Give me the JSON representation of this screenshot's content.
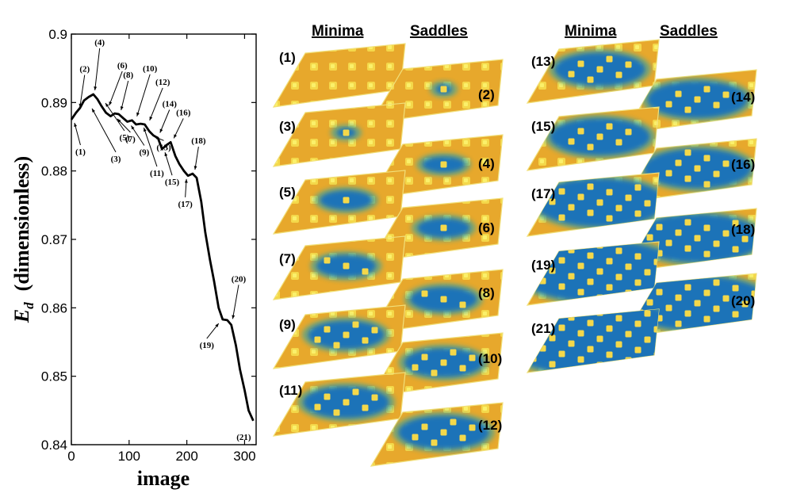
{
  "chart_data": [
    {
      "type": "line",
      "xlabel": "image",
      "ylabel": "E_d (dimensionless)",
      "ylabel_main": "E",
      "ylabel_sub": "d",
      "ylabel_rest": "(dimensionless)",
      "xlim": [
        0,
        320
      ],
      "ylim": [
        0.84,
        0.9
      ],
      "xticks": [
        "0",
        "100",
        "200",
        "300"
      ],
      "yticks": [
        "0.84",
        "0.85",
        "0.86",
        "0.87",
        "0.88",
        "0.89",
        "0.9"
      ],
      "series": [
        {
          "x": [
            0,
            8,
            15,
            22,
            30,
            38,
            45,
            52,
            60,
            68,
            75,
            82,
            90,
            97,
            105,
            112,
            120,
            127,
            135,
            142,
            150,
            157,
            165,
            172,
            180,
            187,
            195,
            202,
            210,
            217,
            225,
            232,
            240,
            247,
            255,
            262,
            270,
            277,
            285,
            292,
            300,
            307,
            315
          ],
          "y": [
            0.8875,
            0.8885,
            0.8892,
            0.8903,
            0.8908,
            0.8912,
            0.8905,
            0.8895,
            0.8885,
            0.888,
            0.8884,
            0.8883,
            0.8877,
            0.8872,
            0.8874,
            0.8868,
            0.8869,
            0.8868,
            0.8858,
            0.8852,
            0.8848,
            0.8832,
            0.8838,
            0.8842,
            0.8822,
            0.881,
            0.88,
            0.8793,
            0.8796,
            0.879,
            0.8755,
            0.871,
            0.867,
            0.864,
            0.86,
            0.8583,
            0.8582,
            0.8575,
            0.8545,
            0.851,
            0.848,
            0.845,
            0.8435
          ]
        }
      ],
      "annotations": [
        {
          "text": "(1)",
          "x": 2,
          "y": 0.8876
        },
        {
          "text": "(2)",
          "x": 12,
          "y": 0.8887
        },
        {
          "text": "(3)",
          "x": 22,
          "y": 0.8897
        },
        {
          "text": "(4)",
          "x": 38,
          "y": 0.8912
        },
        {
          "text": "(5)",
          "x": 48,
          "y": 0.8905
        },
        {
          "text": "(6)",
          "x": 58,
          "y": 0.889
        },
        {
          "text": "(7)",
          "x": 72,
          "y": 0.8882
        },
        {
          "text": "(8)",
          "x": 82,
          "y": 0.8883
        },
        {
          "text": "(9)",
          "x": 96,
          "y": 0.8872
        },
        {
          "text": "(10)",
          "x": 106,
          "y": 0.8874
        },
        {
          "text": "(11)",
          "x": 118,
          "y": 0.8869
        },
        {
          "text": "(12)",
          "x": 128,
          "y": 0.8868
        },
        {
          "text": "(13)",
          "x": 138,
          "y": 0.8856
        },
        {
          "text": "(14)",
          "x": 148,
          "y": 0.885
        },
        {
          "text": "(15)",
          "x": 158,
          "y": 0.8833
        },
        {
          "text": "(16)",
          "x": 172,
          "y": 0.8842
        },
        {
          "text": "(17)",
          "x": 200,
          "y": 0.8794
        },
        {
          "text": "(18)",
          "x": 212,
          "y": 0.8796
        },
        {
          "text": "(19)",
          "x": 262,
          "y": 0.8583
        },
        {
          "text": "(20)",
          "x": 276,
          "y": 0.8578
        },
        {
          "text": "(21)",
          "x": 315,
          "y": 0.8435
        }
      ]
    }
  ],
  "panels": {
    "column_headers": [
      "Minima",
      "Saddles",
      "Minima",
      "Saddles"
    ],
    "labels": [
      "(1)",
      "(2)",
      "(3)",
      "(4)",
      "(5)",
      "(6)",
      "(7)",
      "(8)",
      "(9)",
      "(10)",
      "(11)",
      "(12)",
      "(13)",
      "(14)",
      "(15)",
      "(16)",
      "(17)",
      "(18)",
      "(19)",
      "(20)",
      "(21)"
    ],
    "colors": {
      "base": "#e7a82c",
      "bump": "#f6e24a",
      "well": "#1a73b8",
      "well_edge": "#2aa3a8"
    }
  }
}
